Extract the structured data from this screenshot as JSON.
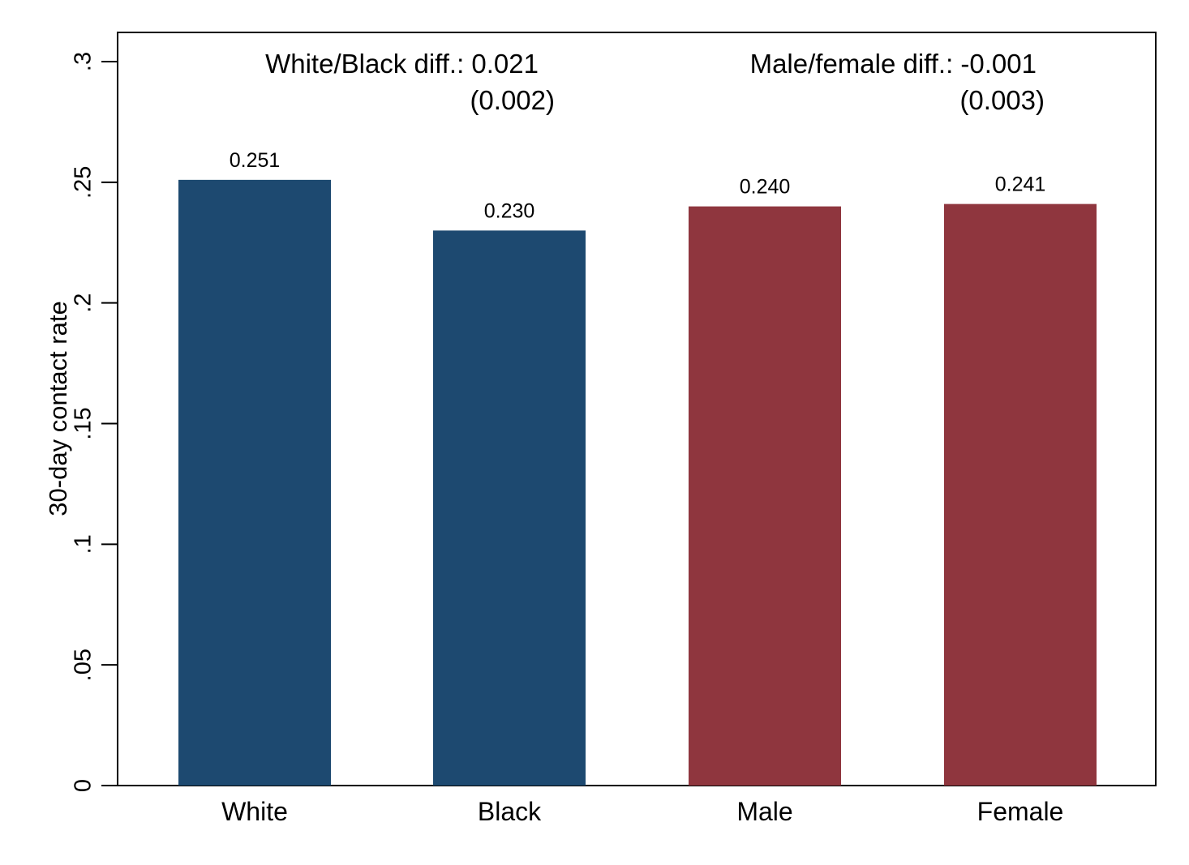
{
  "chart_data": {
    "type": "bar",
    "title": "",
    "xlabel": "",
    "ylabel": "30-day contact rate",
    "categories": [
      "White",
      "Black",
      "Male",
      "Female"
    ],
    "values": [
      0.251,
      0.23,
      0.24,
      0.241
    ],
    "bar_labels": [
      "0.251",
      "0.230",
      "0.240",
      "0.241"
    ],
    "bar_colors": [
      "#1d4970",
      "#1d4970",
      "#8f363e",
      "#8f363e"
    ],
    "ylim": [
      0,
      0.3
    ],
    "yticks": [
      0,
      0.05,
      0.1,
      0.15,
      0.2,
      0.25,
      0.3
    ],
    "ytick_labels": [
      "0",
      ".05",
      ".1",
      ".15",
      ".2",
      ".25",
      ".3"
    ],
    "grid": false,
    "annotations": [
      {
        "line1": "White/Black diff.: 0.021",
        "line2": "(0.002)"
      },
      {
        "line1": "Male/female diff.: -0.001",
        "line2": "(0.003)"
      }
    ]
  }
}
